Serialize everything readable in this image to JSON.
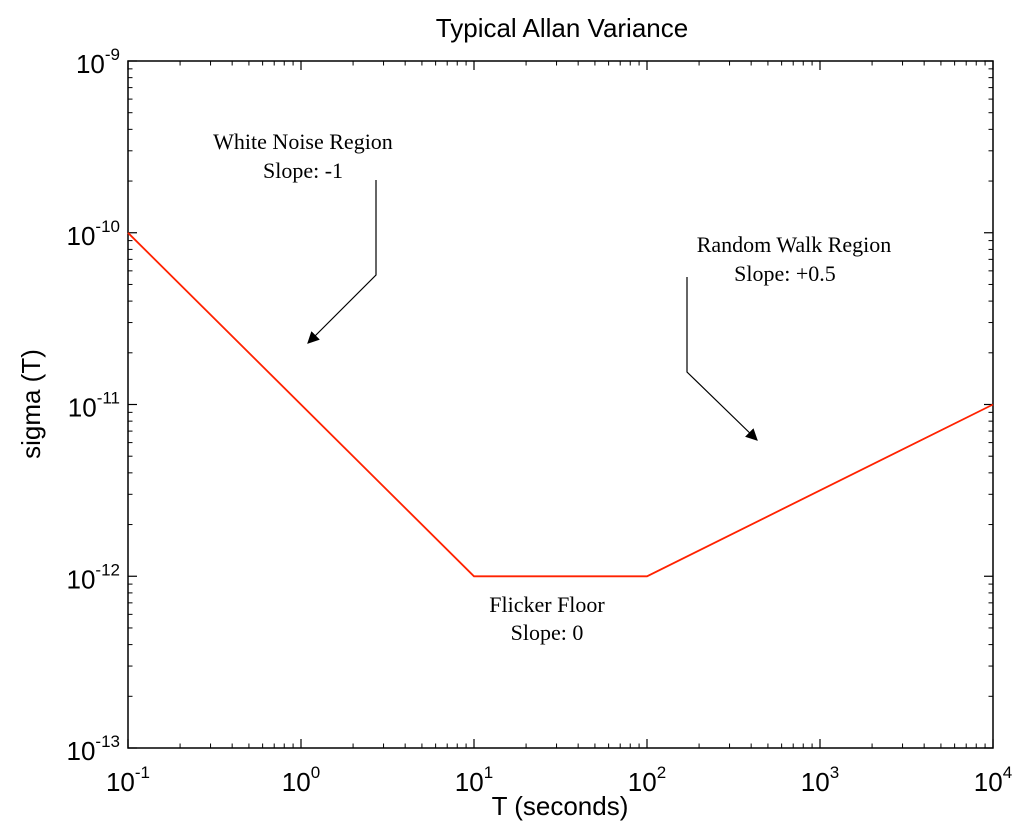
{
  "chart_data": {
    "type": "line",
    "title": "Typical Allan Variance",
    "xlabel": "T (seconds)",
    "ylabel": "sigma (T)",
    "xscale": "log",
    "yscale": "log",
    "xlim": [
      0.1,
      10000
    ],
    "ylim": [
      1e-13,
      1e-09
    ],
    "x_ticks": [
      {
        "base": "10",
        "exp": "-1"
      },
      {
        "base": "10",
        "exp": "0"
      },
      {
        "base": "10",
        "exp": "1"
      },
      {
        "base": "10",
        "exp": "2"
      },
      {
        "base": "10",
        "exp": "3"
      },
      {
        "base": "10",
        "exp": "4"
      }
    ],
    "y_ticks": [
      {
        "base": "10",
        "exp": "-13"
      },
      {
        "base": "10",
        "exp": "-12"
      },
      {
        "base": "10",
        "exp": "-11"
      },
      {
        "base": "10",
        "exp": "-10"
      },
      {
        "base": "10",
        "exp": "-9"
      }
    ],
    "grid": false,
    "series": [
      {
        "color": "#ff2200",
        "points": [
          [
            0.1,
            1e-10
          ],
          [
            10,
            1e-12
          ],
          [
            100,
            1e-12
          ],
          [
            10000,
            1e-11
          ]
        ]
      }
    ],
    "annotations": [
      {
        "lines": [
          "White Noise Region",
          "Slope: -1"
        ]
      },
      {
        "lines": [
          "Random Walk Region",
          "Slope: +0.5"
        ]
      },
      {
        "lines": [
          "Flicker Floor",
          "Slope: 0"
        ]
      }
    ]
  }
}
